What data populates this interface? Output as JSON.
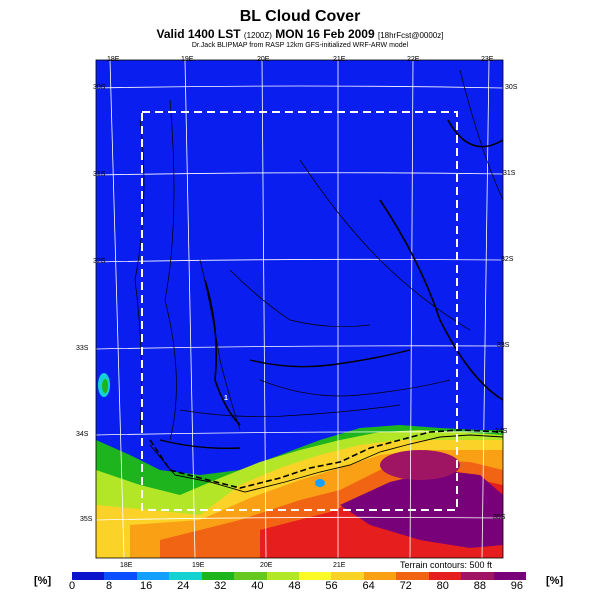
{
  "header": {
    "title": "BL Cloud Cover",
    "subtitle_main": "Valid 1400 LST",
    "subtitle_code": "(1200Z)",
    "subtitle_date": "MON 16 Feb 2009",
    "subtitle_fcst": "[18hrFcst@0000z]",
    "credit": "Dr.Jack BLIPMAP from RASP 12km GFS-initialized WRF-ARW model"
  },
  "map": {
    "top_lon_labels": [
      "18E",
      "19E",
      "20E",
      "21E",
      "22E",
      "23E"
    ],
    "bottom_lon_labels": [
      "18E",
      "19E",
      "20E",
      "21E"
    ],
    "left_lat_labels": [
      "30S",
      "31S",
      "32S",
      "33S",
      "34S",
      "35S"
    ],
    "right_lat_labels": [
      "30S",
      "31S",
      "32S",
      "33S",
      "34S",
      "35S"
    ],
    "point_label": "1",
    "terrain_note": "Terrain contours: 500 ft",
    "colors": {
      "low": "#0a1ef0",
      "grid": "#ffffff",
      "contour": "#000000",
      "box": "#ffffff"
    }
  },
  "colorbar": {
    "unit_left": "[%]",
    "unit_right": "[%]",
    "ticks": [
      "0",
      "8",
      "16",
      "24",
      "32",
      "40",
      "48",
      "56",
      "64",
      "72",
      "80",
      "88",
      "96"
    ],
    "colors": [
      "#0a14c8",
      "#0a50ff",
      "#14a0ff",
      "#14d2d2",
      "#1eb41e",
      "#64c81e",
      "#b4e628",
      "#fafa28",
      "#fad228",
      "#faa014",
      "#f06414",
      "#e61e1e",
      "#a01464",
      "#780078"
    ]
  }
}
